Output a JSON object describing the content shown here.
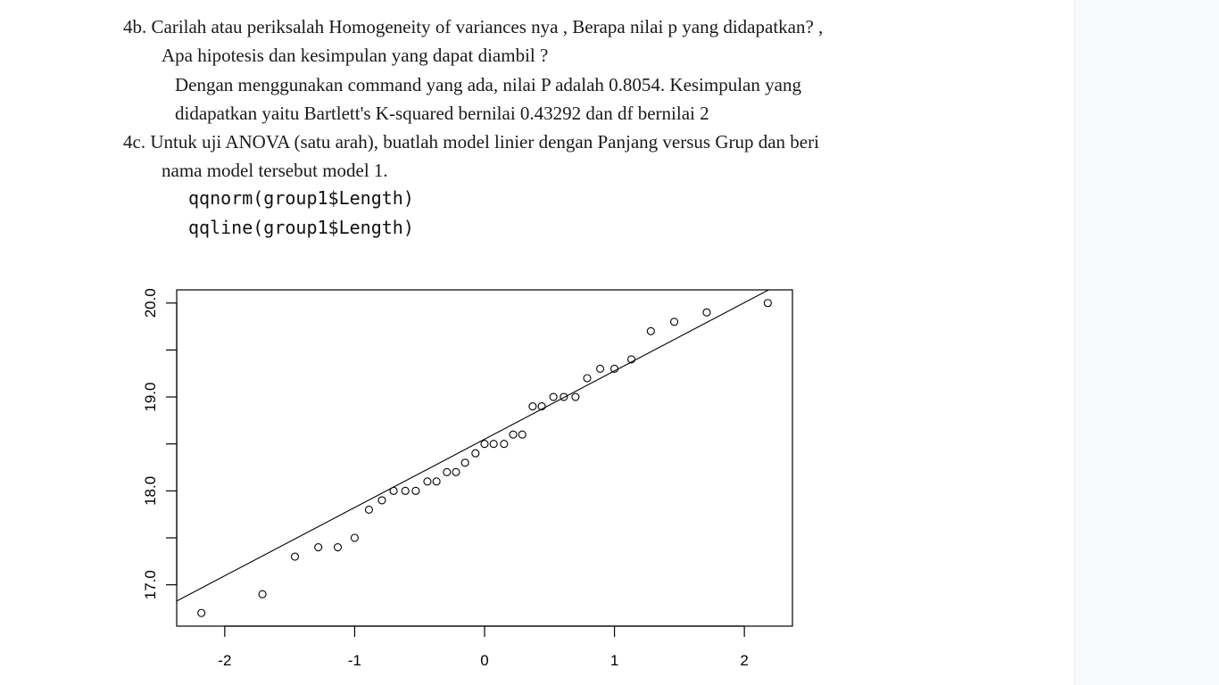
{
  "document": {
    "q4b_line1": "4b. Carilah atau periksalah Homogeneity of variances nya , Berapa nilai p yang didapatkan? ,",
    "q4b_line2": "Apa hipotesis dan kesimpulan yang dapat diambil ?",
    "a4b_line1": "Dengan menggunakan command yang ada, nilai P adalah 0.8054. Kesimpulan yang",
    "a4b_line2": "didapatkan yaitu Bartlett's K-squared bernilai 0.43292 dan df bernilai 2",
    "q4c_line1": "4c. Untuk uji ANOVA (satu arah), buatlah model linier dengan Panjang versus Grup dan beri",
    "q4c_line2": "nama model tersebut model 1.",
    "code_line1": "qqnorm(group1$Length)",
    "code_line2": "qqline(group1$Length)"
  },
  "chart_data": {
    "type": "scatter",
    "title": "",
    "xlabel": "",
    "ylabel": "",
    "xlim": [
      -2.37,
      2.37
    ],
    "ylim": [
      16.56,
      20.14
    ],
    "x_ticks": [
      "-2",
      "-1",
      "0",
      "1",
      "2"
    ],
    "y_ticks": [
      "17.0",
      "18.0",
      "19.0",
      "20.0"
    ],
    "grid": false,
    "points": [
      [
        -2.18,
        16.7
      ],
      [
        -1.71,
        16.9
      ],
      [
        -1.46,
        17.3
      ],
      [
        -1.28,
        17.4
      ],
      [
        -1.13,
        17.4
      ],
      [
        -1.0,
        17.5
      ],
      [
        -0.89,
        17.8
      ],
      [
        -0.79,
        17.9
      ],
      [
        -0.7,
        18.0
      ],
      [
        -0.61,
        18.0
      ],
      [
        -0.53,
        18.0
      ],
      [
        -0.44,
        18.1
      ],
      [
        -0.37,
        18.1
      ],
      [
        -0.29,
        18.2
      ],
      [
        -0.22,
        18.2
      ],
      [
        -0.15,
        18.3
      ],
      [
        -0.07,
        18.4
      ],
      [
        0.0,
        18.5
      ],
      [
        0.07,
        18.5
      ],
      [
        0.15,
        18.5
      ],
      [
        0.22,
        18.6
      ],
      [
        0.29,
        18.6
      ],
      [
        0.37,
        18.9
      ],
      [
        0.44,
        18.9
      ],
      [
        0.53,
        19.0
      ],
      [
        0.61,
        19.0
      ],
      [
        0.7,
        19.0
      ],
      [
        0.79,
        19.2
      ],
      [
        0.89,
        19.3
      ],
      [
        1.0,
        19.3
      ],
      [
        1.13,
        19.4
      ],
      [
        1.28,
        19.7
      ],
      [
        1.46,
        19.8
      ],
      [
        1.71,
        19.9
      ],
      [
        2.18,
        20.0
      ]
    ],
    "qqline": {
      "intercept": 18.55,
      "slope": 0.727
    }
  }
}
